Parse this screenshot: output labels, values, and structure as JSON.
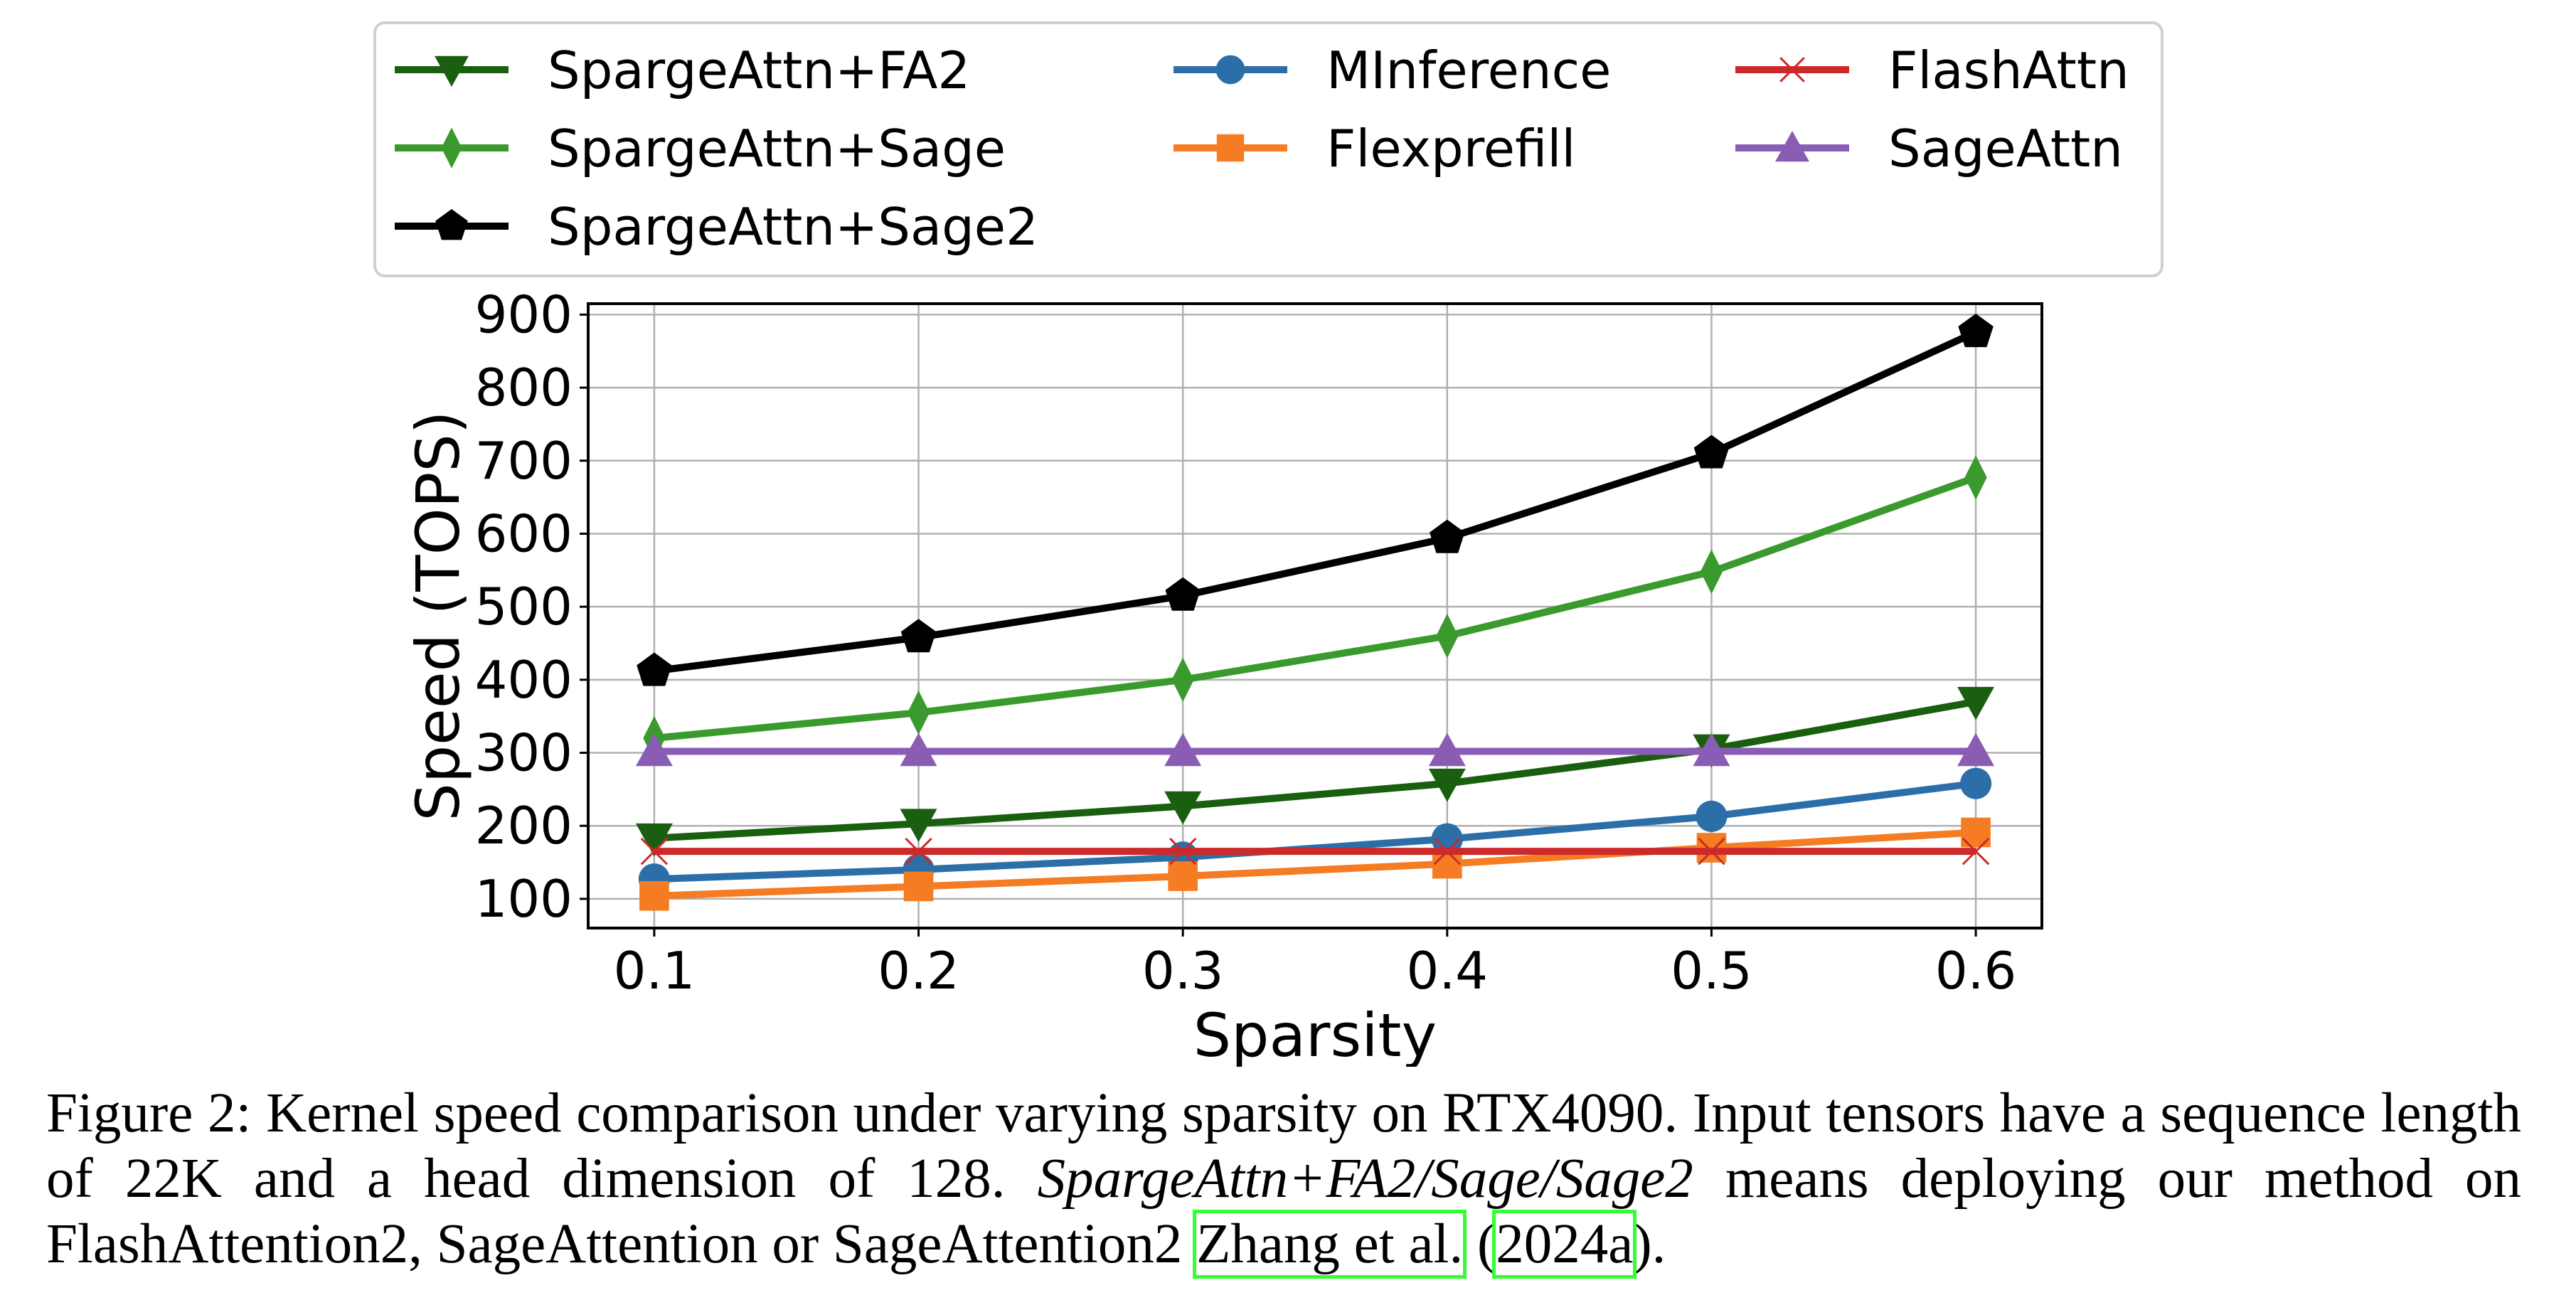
{
  "chart_data": {
    "type": "line",
    "xlabel": "Sparsity",
    "ylabel": "Speed (TOPS)",
    "x": [
      0.1,
      0.2,
      0.3,
      0.4,
      0.5,
      0.6
    ],
    "xticks": [
      "0.1",
      "0.2",
      "0.3",
      "0.4",
      "0.5",
      "0.6"
    ],
    "yticks": [
      "100",
      "200",
      "300",
      "400",
      "500",
      "600",
      "700",
      "800",
      "900"
    ],
    "ylim": [
      60,
      915
    ],
    "xlim": [
      0.075,
      0.625
    ],
    "grid": true,
    "legend_placement": "top (above plot), 3 columns",
    "series": [
      {
        "name": "SpargeAttn+FA2",
        "color": "#1a5e0f",
        "marker": "triangle-down",
        "values": [
          183,
          203,
          227,
          258,
          305,
          370
        ]
      },
      {
        "name": "SpargeAttn+Sage",
        "color": "#3a9a2d",
        "marker": "thin-diamond",
        "values": [
          320,
          355,
          400,
          460,
          548,
          677
        ]
      },
      {
        "name": "SpargeAttn+Sage2",
        "color": "#000000",
        "marker": "pentagon",
        "values": [
          412,
          458,
          515,
          594,
          710,
          876
        ]
      },
      {
        "name": "MInference",
        "color": "#2c6fa8",
        "marker": "circle",
        "values": [
          127,
          140,
          157,
          182,
          213,
          258
        ]
      },
      {
        "name": "Flexprefill",
        "color": "#f57c22",
        "marker": "square",
        "values": [
          104,
          117,
          131,
          148,
          170,
          191
        ]
      },
      {
        "name": "FlashAttn",
        "color": "#cc2a2a",
        "marker": "x",
        "values": [
          165,
          165,
          165,
          165,
          165,
          165
        ]
      },
      {
        "name": "SageAttn",
        "color": "#8a5db5",
        "marker": "triangle-up",
        "values": [
          302,
          302,
          302,
          302,
          302,
          302
        ]
      }
    ]
  },
  "caption": {
    "prefix": "Figure 2: Kernel speed comparison under varying sparsity on RTX4090. Input tensors have a sequence length of 22K and a head dimension of 128. ",
    "italic": "SpargeAttn+FA2/Sage/Sage2",
    "middle": " means deploying our method on FlashAttention2, SageAttention or SageAttention2 ",
    "cite_author": "Zhang et al.",
    "open_paren": " (",
    "cite_year": "2024a",
    "close": ")."
  }
}
